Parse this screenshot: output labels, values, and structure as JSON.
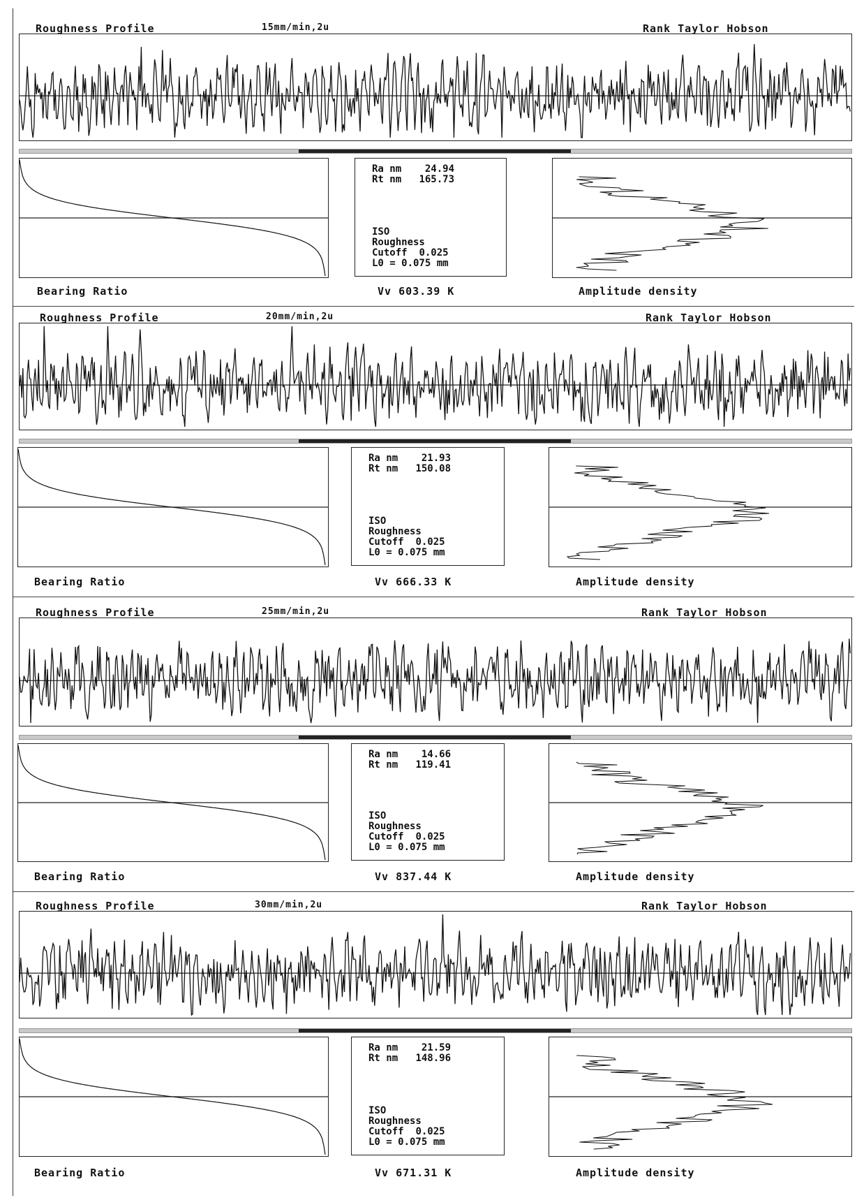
{
  "brand": "Rank Taylor Hobson",
  "chart_data": [
    {
      "type": "line",
      "title": "Roughness Profile",
      "condition": "15mm/min,2u",
      "profile_seed": 11,
      "parameters": {
        "ra_label": "Ra nm",
        "ra": "24.94",
        "rt_label": "Rt nm",
        "rt": "165.73",
        "standard": "ISO",
        "filter": "Roughness",
        "cutoff_label": "Cutoff",
        "cutoff": "0.025",
        "l0": "L0 = 0.075 mm",
        "vv": "Vv 603.39 K"
      },
      "bearing_ratio_label": "Bearing Ratio",
      "amplitude_density_label": "Amplitude density"
    },
    {
      "type": "line",
      "title": "Roughness Profile",
      "condition": "20mm/min,2u",
      "profile_seed": 23,
      "parameters": {
        "ra_label": "Ra nm",
        "ra": "21.93",
        "rt_label": "Rt nm",
        "rt": "150.08",
        "standard": "ISO",
        "filter": "Roughness",
        "cutoff_label": "Cutoff",
        "cutoff": "0.025",
        "l0": "L0 = 0.075 mm",
        "vv": "Vv 666.33 K"
      },
      "bearing_ratio_label": "Bearing Ratio",
      "amplitude_density_label": "Amplitude density"
    },
    {
      "type": "line",
      "title": "Roughness Profile",
      "condition": "25mm/min,2u",
      "profile_seed": 37,
      "parameters": {
        "ra_label": "Ra nm",
        "ra": "14.66",
        "rt_label": "Rt nm",
        "rt": "119.41",
        "standard": "ISO",
        "filter": "Roughness",
        "cutoff_label": "Cutoff",
        "cutoff": "0.025",
        "l0": "L0 = 0.075 mm",
        "vv": "Vv 837.44 K"
      },
      "bearing_ratio_label": "Bearing Ratio",
      "amplitude_density_label": "Amplitude density"
    },
    {
      "type": "line",
      "title": "Roughness Profile",
      "condition": "30mm/min,2u",
      "profile_seed": 53,
      "parameters": {
        "ra_label": "Ra nm",
        "ra": "21.59",
        "rt_label": "Rt nm",
        "rt": "148.96",
        "standard": "ISO",
        "filter": "Roughness",
        "cutoff_label": "Cutoff",
        "cutoff": "0.025",
        "l0": "L0 = 0.075 mm",
        "vv": "Vv 671.31 K"
      },
      "bearing_ratio_label": "Bearing Ratio",
      "amplitude_density_label": "Amplitude density"
    }
  ]
}
